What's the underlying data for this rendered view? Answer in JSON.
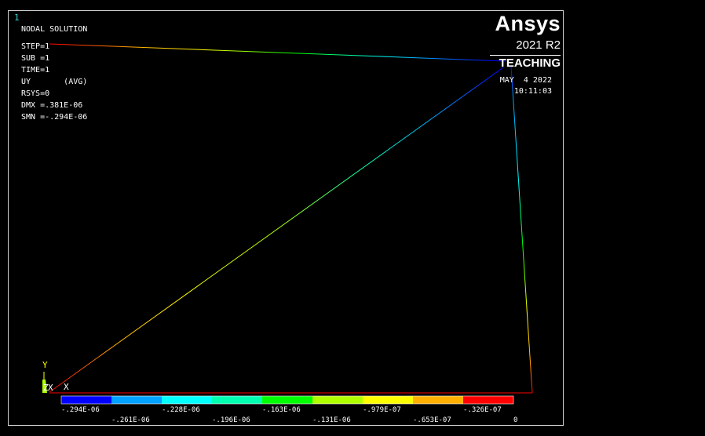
{
  "window_number": "1",
  "info": {
    "title": "NODAL SOLUTION",
    "step": "STEP=1",
    "sub": "SUB =1",
    "time": "TIME=1",
    "uy": "UY       (AVG)",
    "rsys": "RSYS=0",
    "dmx": "DMX =.381E-06",
    "smn": "SMN =-.294E-06"
  },
  "logo": {
    "brand": "Ansys",
    "version": "2021 R2",
    "edition": "TEACHING"
  },
  "datetime": {
    "date": "MAY  4 2022",
    "time": "10:11:03"
  },
  "axes": {
    "y_label": "Y",
    "x_label": "X",
    "z_label": "Z"
  },
  "legend": {
    "colors": [
      "#0000ff",
      "#00a2ff",
      "#00ffff",
      "#00ffb0",
      "#00ff00",
      "#b0ff00",
      "#ffff00",
      "#ffb000",
      "#ff0000"
    ],
    "upper_labels": [
      "-.294E-06",
      "-.228E-06",
      "-.163E-06",
      "-.979E-07",
      "-.326E-07"
    ],
    "lower_labels": [
      "-.261E-06",
      "-.196E-06",
      "-.131E-06",
      "-.653E-07",
      "0"
    ]
  }
}
